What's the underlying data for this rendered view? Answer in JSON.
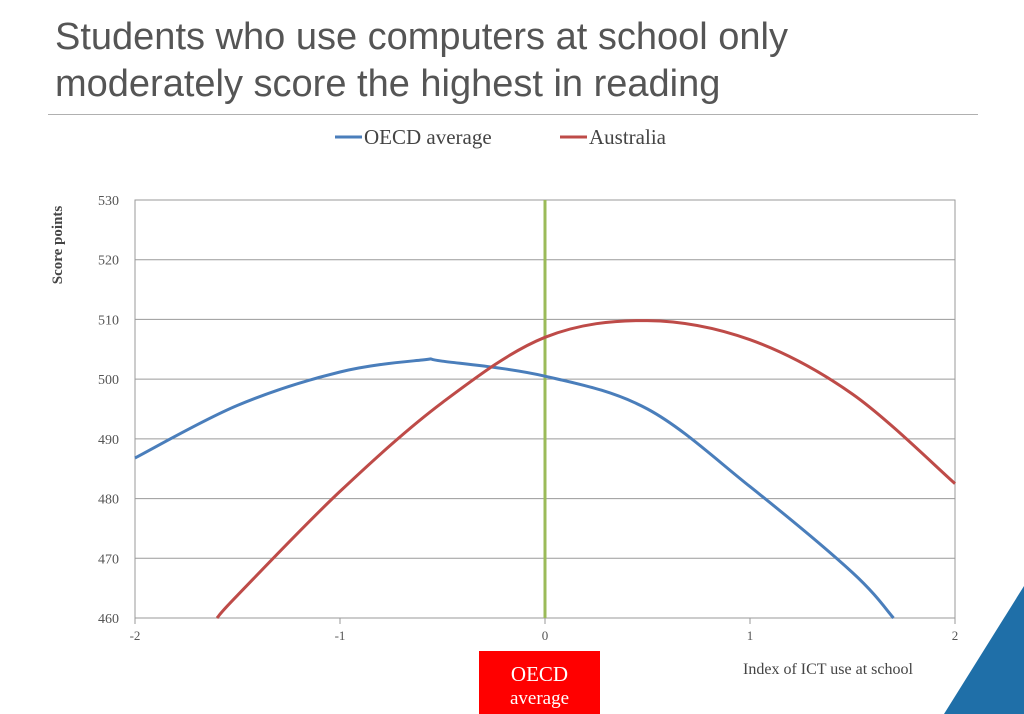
{
  "slide": {
    "title": "Students who use computers at school only moderately score the highest in reading"
  },
  "callout": {
    "line1": "OECD",
    "line2": "average"
  },
  "colors": {
    "title": "#555555",
    "oecd": "#4a7ebb",
    "australia": "#be4b48",
    "marker": "#9bbb59",
    "callout_bg": "#ff0000",
    "accent_corner": "#1f6fa8"
  },
  "chart_data": {
    "type": "line",
    "title": "",
    "xlabel": "Index of ICT use at school",
    "ylabel": "Score points",
    "xlim": [
      -2,
      2
    ],
    "ylim": [
      460,
      530
    ],
    "x_ticks": [
      "-2",
      "-1",
      "0",
      "1",
      "2"
    ],
    "y_ticks": [
      "460",
      "470",
      "480",
      "490",
      "500",
      "510",
      "520",
      "530"
    ],
    "grid": true,
    "legend_position": "top-center",
    "vertical_marker_x": 0,
    "series": [
      {
        "name": "OECD average",
        "color": "#4a7ebb",
        "x": [
          -2,
          -1.5,
          -1,
          -0.6,
          -0.5,
          0,
          0.5,
          1,
          1.5,
          1.7
        ],
        "y": [
          486.8,
          495.6,
          501.2,
          503.2,
          503.0,
          500.5,
          495.0,
          482.0,
          467.6,
          460
        ]
      },
      {
        "name": "Australia",
        "color": "#be4b48",
        "x": [
          -1.6,
          -1.5,
          -1,
          -0.5,
          0,
          0.5,
          1,
          1.5,
          2
        ],
        "y": [
          460,
          463.8,
          481.2,
          496.1,
          507.0,
          509.8,
          506.6,
          497.5,
          482.5
        ]
      }
    ]
  }
}
